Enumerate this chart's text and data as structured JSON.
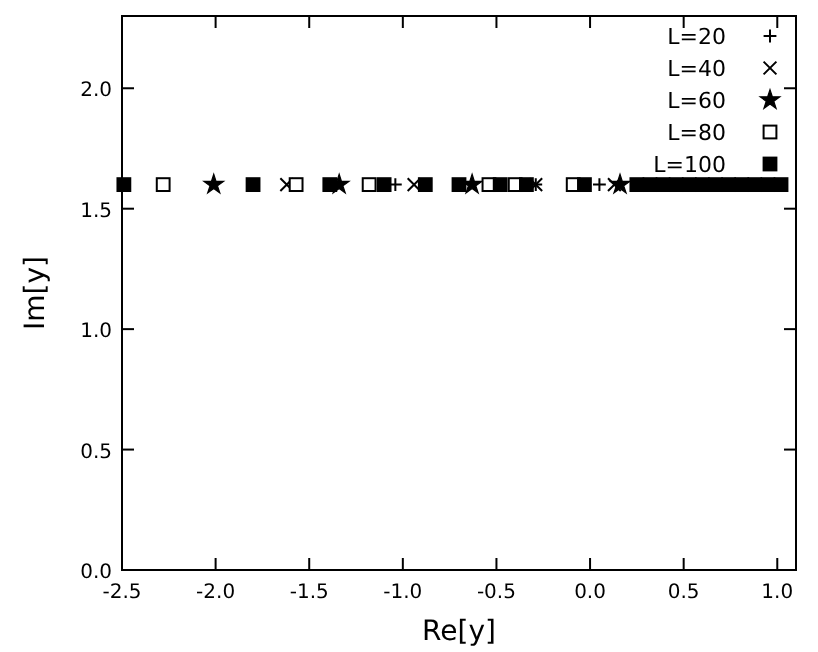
{
  "chart_data": {
    "type": "scatter",
    "xlabel": "Re[y]",
    "ylabel": "Im[y]",
    "xlim": [
      -2.5,
      1.1
    ],
    "xticks": [
      {
        "value": -2.5,
        "label": "-2.5"
      },
      {
        "value": -2,
        "label": "-2.0"
      },
      {
        "value": -1.5,
        "label": "-1.5"
      },
      {
        "value": -1,
        "label": "-1.0"
      },
      {
        "value": -0.5,
        "label": "-0.5"
      },
      {
        "value": 0,
        "label": "0.0"
      },
      {
        "value": 0.5,
        "label": "0.5"
      },
      {
        "value": 1,
        "label": "1.0"
      }
    ],
    "ylim": [
      0,
      2.3
    ],
    "yticks": [
      {
        "value": 0,
        "label": "0.0"
      },
      {
        "value": 0.5,
        "label": "0.5"
      },
      {
        "value": 1,
        "label": "1.0"
      },
      {
        "value": 1.5,
        "label": "1.5"
      },
      {
        "value": 2,
        "label": "2.0"
      }
    ],
    "grid": false,
    "legend": "top right",
    "series": [
      {
        "name": "L=20",
        "color": "#000000",
        "marker": "plus",
        "x": [
          -1.04,
          -0.29,
          0.05
        ],
        "values": [
          1.6,
          1.6,
          1.6
        ]
      },
      {
        "name": "L=40",
        "color": "#000000",
        "marker": "cross",
        "x": [
          -1.62,
          -0.94,
          -0.29,
          0.13
        ],
        "values": [
          1.6,
          1.6,
          1.6,
          1.6
        ]
      },
      {
        "name": "L=60",
        "color": "#000000",
        "marker": "star",
        "x": [
          -2.01,
          -1.34,
          -0.63,
          0.16
        ],
        "values": [
          1.6,
          1.6,
          1.6,
          1.6
        ]
      },
      {
        "name": "L=80",
        "color": "#000000",
        "marker": "square",
        "x": [
          -2.28,
          -1.57,
          -1.18,
          -0.54,
          -0.4,
          -0.09
        ],
        "values": [
          1.6,
          1.6,
          1.6,
          1.6,
          1.6,
          1.6
        ]
      },
      {
        "name": "L=100",
        "color": "#000000",
        "marker": "square-filled",
        "x": [
          -2.49,
          -1.8,
          -1.39,
          -1.1,
          -0.88,
          -0.7,
          -0.48,
          -0.34,
          -0.03,
          0.25,
          0.32,
          0.39,
          0.46,
          0.53,
          0.6,
          0.67,
          0.74,
          0.81,
          0.88,
          0.95,
          1.02
        ],
        "values": [
          1.6,
          1.6,
          1.6,
          1.6,
          1.6,
          1.6,
          1.6,
          1.6,
          1.6,
          1.6,
          1.6,
          1.6,
          1.6,
          1.6,
          1.6,
          1.6,
          1.6,
          1.6,
          1.6,
          1.6,
          1.6
        ]
      }
    ]
  }
}
